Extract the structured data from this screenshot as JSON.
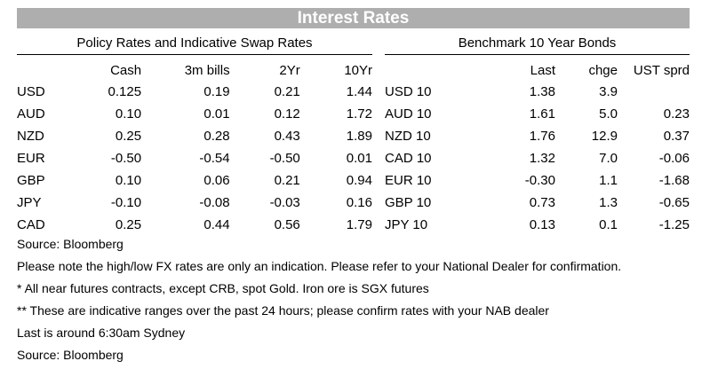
{
  "title": "Interest Rates",
  "policy": {
    "heading": "Policy Rates and Indicative Swap Rates",
    "columns": [
      "Cash",
      "3m bills",
      "2Yr",
      "10Yr"
    ],
    "rows": [
      {
        "ccy": "USD",
        "vals": [
          "0.125",
          "0.19",
          "0.21",
          "1.44"
        ]
      },
      {
        "ccy": "AUD",
        "vals": [
          "0.10",
          "0.01",
          "0.12",
          "1.72"
        ]
      },
      {
        "ccy": "NZD",
        "vals": [
          "0.25",
          "0.28",
          "0.43",
          "1.89"
        ]
      },
      {
        "ccy": "EUR",
        "vals": [
          "-0.50",
          "-0.54",
          "-0.50",
          "0.01"
        ]
      },
      {
        "ccy": "GBP",
        "vals": [
          "0.10",
          "0.06",
          "0.21",
          "0.94"
        ]
      },
      {
        "ccy": "JPY",
        "vals": [
          "-0.10",
          "-0.08",
          "-0.03",
          "0.16"
        ]
      },
      {
        "ccy": "CAD",
        "vals": [
          "0.25",
          "0.44",
          "0.56",
          "1.79"
        ]
      }
    ]
  },
  "bonds": {
    "heading": "Benchmark 10 Year Bonds",
    "columns": [
      "Last",
      "chge",
      "UST sprd"
    ],
    "rows": [
      {
        "name": "USD 10",
        "vals": [
          "1.38",
          "3.9",
          ""
        ]
      },
      {
        "name": "AUD 10",
        "vals": [
          "1.61",
          "5.0",
          "0.23"
        ]
      },
      {
        "name": "NZD 10",
        "vals": [
          "1.76",
          "12.9",
          "0.37"
        ]
      },
      {
        "name": "CAD 10",
        "vals": [
          "1.32",
          "7.0",
          "-0.06"
        ]
      },
      {
        "name": "EUR 10",
        "vals": [
          "-0.30",
          "1.1",
          "-1.68"
        ]
      },
      {
        "name": "GBP 10",
        "vals": [
          "0.73",
          "1.3",
          "-0.65"
        ]
      },
      {
        "name": "JPY 10",
        "vals": [
          "0.13",
          "0.1",
          "-1.25"
        ]
      }
    ]
  },
  "notes": [
    "Source: Bloomberg",
    "Please note the high/low FX rates are only an indication. Please refer to your National Dealer for confirmation.",
    "* All near futures contracts, except CRB, spot Gold.  Iron ore is SGX futures",
    "** These are indicative ranges over the past 24 hours; please confirm rates with your NAB dealer",
    "Last is around 6:30am Sydney",
    "Source: Bloomberg"
  ]
}
